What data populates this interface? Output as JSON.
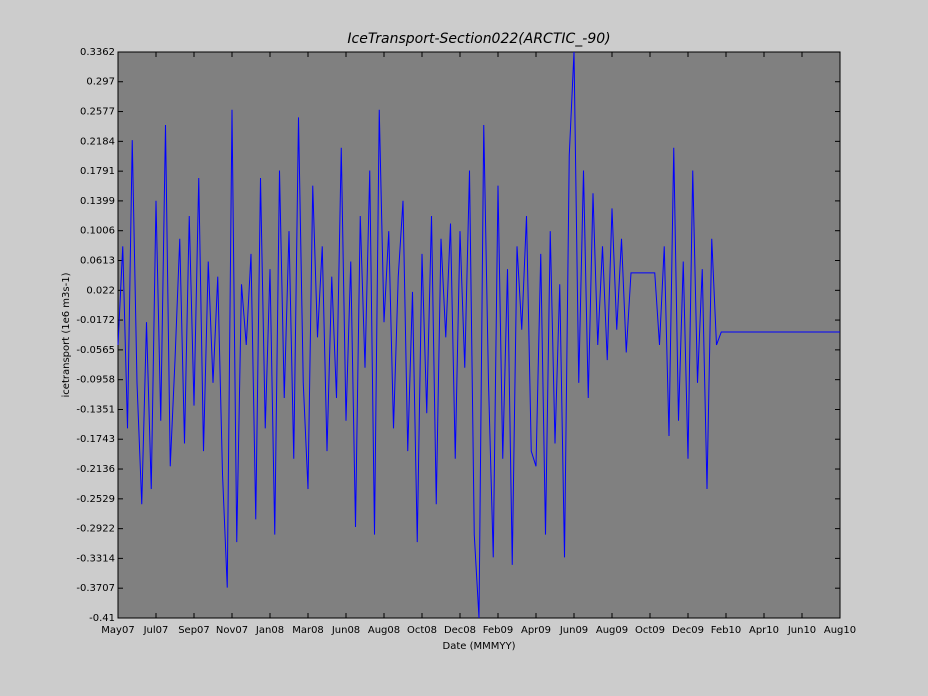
{
  "chart_data": {
    "type": "line",
    "title": "IceTransport-Section022(ARCTIC_-90)",
    "x_label": "Date (MMMYY)",
    "y_label": "icetransport (1e6 m3s-1)",
    "series": [
      {
        "color": "#0000ff",
        "values": [
          -0.05,
          0.08,
          -0.16,
          0.22,
          -0.1,
          -0.26,
          -0.02,
          -0.24,
          0.14,
          -0.15,
          0.24,
          -0.21,
          -0.07,
          0.09,
          -0.18,
          0.12,
          -0.13,
          0.17,
          -0.19,
          0.06,
          -0.1,
          0.04,
          -0.22,
          -0.37,
          0.26,
          -0.31,
          0.03,
          -0.05,
          0.07,
          -0.28,
          0.17,
          -0.16,
          0.05,
          -0.3,
          0.18,
          -0.12,
          0.1,
          -0.2,
          0.25,
          -0.1,
          -0.24,
          0.16,
          -0.04,
          0.08,
          -0.19,
          0.04,
          -0.12,
          0.21,
          -0.15,
          0.06,
          -0.29,
          0.12,
          -0.08,
          0.18,
          -0.3,
          0.26,
          -0.02,
          0.1,
          -0.16,
          0.04,
          0.14,
          -0.19,
          0.02,
          -0.31,
          0.07,
          -0.14,
          0.12,
          -0.26,
          0.09,
          -0.04,
          0.11,
          -0.2,
          0.1,
          -0.08,
          0.18,
          -0.3,
          -0.41,
          0.24,
          -0.1,
          -0.33,
          0.16,
          -0.2,
          0.05,
          -0.34,
          0.08,
          -0.03,
          0.12,
          -0.19,
          -0.21,
          0.07,
          -0.3,
          0.1,
          -0.18,
          0.03,
          -0.33,
          0.2,
          0.3362,
          -0.1,
          0.18,
          -0.12,
          0.15,
          -0.05,
          0.08,
          -0.07,
          0.13,
          -0.03,
          0.09,
          -0.06,
          0.045,
          0.045,
          0.045,
          0.045,
          0.045,
          0.045,
          -0.05,
          0.08,
          -0.17,
          0.21,
          -0.15,
          0.06,
          -0.2,
          0.18,
          -0.1,
          0.05,
          -0.24,
          0.09,
          -0.05,
          -0.033,
          -0.033,
          -0.033,
          -0.033,
          -0.033,
          -0.033,
          -0.033,
          -0.033,
          -0.033,
          -0.033,
          -0.033,
          -0.033,
          -0.033,
          -0.033,
          -0.033,
          -0.033,
          -0.033,
          -0.033,
          -0.033,
          -0.033,
          -0.033,
          -0.033,
          -0.033,
          -0.033,
          -0.033,
          -0.033
        ]
      }
    ],
    "xlim": [
      0,
      152
    ],
    "xticks": [
      {
        "value": 0,
        "label": "May07"
      },
      {
        "value": 8,
        "label": "Jul07"
      },
      {
        "value": 16,
        "label": "Sep07"
      },
      {
        "value": 24,
        "label": "Nov07"
      },
      {
        "value": 32,
        "label": "Jan08"
      },
      {
        "value": 40,
        "label": "Mar08"
      },
      {
        "value": 48,
        "label": "Jun08"
      },
      {
        "value": 56,
        "label": "Aug08"
      },
      {
        "value": 64,
        "label": "Oct08"
      },
      {
        "value": 72,
        "label": "Dec08"
      },
      {
        "value": 80,
        "label": "Feb09"
      },
      {
        "value": 88,
        "label": "Apr09"
      },
      {
        "value": 96,
        "label": "Jun09"
      },
      {
        "value": 104,
        "label": "Aug09"
      },
      {
        "value": 112,
        "label": "Oct09"
      },
      {
        "value": 120,
        "label": "Dec09"
      },
      {
        "value": 128,
        "label": "Feb10"
      },
      {
        "value": 136,
        "label": "Apr10"
      },
      {
        "value": 144,
        "label": "Jun10"
      },
      {
        "value": 152,
        "label": "Aug10"
      }
    ],
    "ylim": [
      -0.41,
      0.3362
    ],
    "yticks": [
      0.3362,
      0.297,
      0.2577,
      0.2184,
      0.1791,
      0.1399,
      0.1006,
      0.0613,
      0.022,
      -0.0172,
      -0.0565,
      -0.0958,
      -0.1351,
      -0.1743,
      -0.2136,
      -0.2529,
      -0.2922,
      -0.3314,
      -0.3707,
      -0.41
    ],
    "plot_background": "#808080"
  }
}
